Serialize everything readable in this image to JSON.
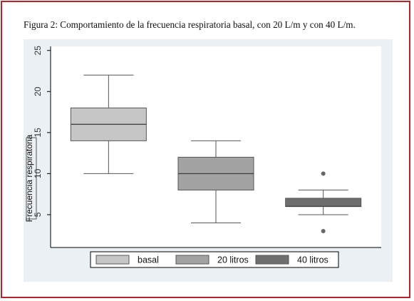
{
  "caption": "Figura 2: Comportamiento de la frecuencia respiratoria basal, con 20 L/m y con 40 L/m.",
  "colors": {
    "frame_border": "#b5232b",
    "plot_background": "#eaf0f4",
    "basal": "#c6c6c6",
    "20_litros": "#a3a3a3",
    "40_litros": "#6e6e6e"
  },
  "chart_data": {
    "type": "box",
    "title": "",
    "ylabel": "Frecuencia respiratoria",
    "ylim": [
      1,
      25.5
    ],
    "yticks": [
      5,
      10,
      15,
      20,
      25
    ],
    "grid": false,
    "legend": "bottom",
    "series": [
      {
        "name": "basal",
        "whisker_low": 10,
        "q1": 14,
        "median": 16,
        "q3": 18,
        "whisker_high": 22,
        "outliers": []
      },
      {
        "name": "20 litros",
        "whisker_low": 4,
        "q1": 8,
        "median": 10,
        "q3": 12,
        "whisker_high": 14,
        "outliers": []
      },
      {
        "name": "40 litros",
        "whisker_low": 5,
        "q1": 6,
        "median": 6,
        "q3": 7,
        "whisker_high": 8,
        "outliers": [
          3,
          10
        ]
      }
    ]
  }
}
